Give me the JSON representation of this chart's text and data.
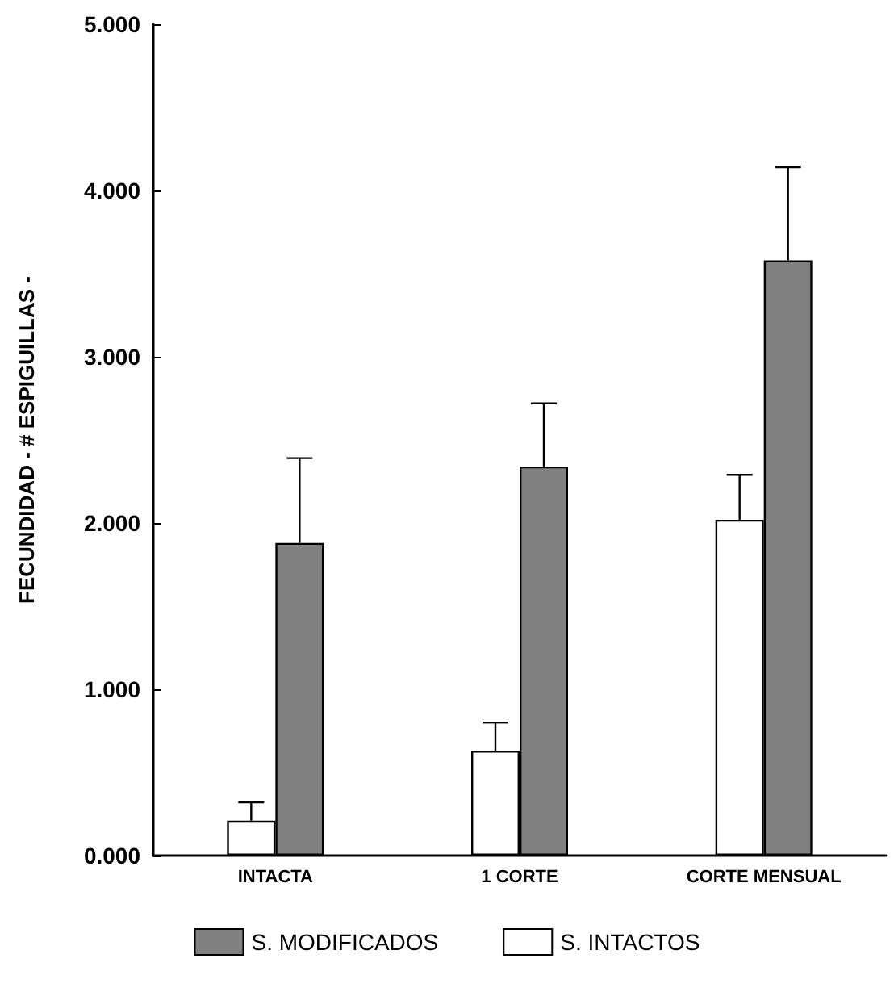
{
  "chart_data": {
    "type": "bar",
    "ylabel": "FECUNDIDAD - # ESPIGUILLAS -",
    "categories": [
      "INTACTA",
      "1 CORTE",
      "CORTE MENSUAL"
    ],
    "series": [
      {
        "name": "S. INTACTOS",
        "color": "#ffffff",
        "values": [
          0.21,
          0.63,
          2.02
        ],
        "errors": [
          [
            0.21,
            0.32
          ],
          [
            0.63,
            0.8
          ],
          [
            2.02,
            2.29
          ]
        ]
      },
      {
        "name": "S. MODIFICADOS",
        "color": "#808080",
        "values": [
          1.88,
          2.34,
          3.58
        ],
        "errors": [
          [
            1.88,
            2.39
          ],
          [
            2.34,
            2.72
          ],
          [
            3.58,
            4.14
          ]
        ]
      }
    ],
    "ylim": [
      0,
      5
    ],
    "yticks": [
      {
        "value": 0,
        "label": "0.000"
      },
      {
        "value": 1,
        "label": "1.000"
      },
      {
        "value": 2,
        "label": "2.000"
      },
      {
        "value": 3,
        "label": "3.000"
      },
      {
        "value": 4,
        "label": "4.000"
      },
      {
        "value": 5,
        "label": "5.000"
      }
    ],
    "grid": false,
    "legend": "bottom"
  }
}
